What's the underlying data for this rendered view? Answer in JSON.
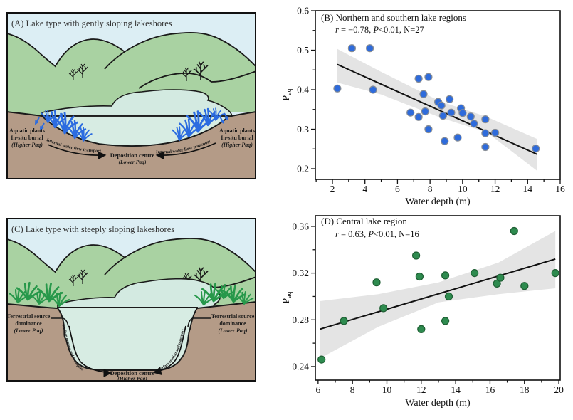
{
  "figure": {
    "panelA": {
      "title": "(A) Lake type with gently sloping lakeshores",
      "aquatic_left": [
        "Aquatic plants",
        "In-situ burial",
        "(Higher Paq)"
      ],
      "aquatic_right": [
        "Aquatic plants",
        "In-situ burial",
        "(Higher Paq)"
      ],
      "flow_arrow_left": "Internal water flow transport",
      "flow_arrow_right": "Internal water flow transport",
      "deposition": [
        "Deposition centre",
        "(Lower Paq)"
      ]
    },
    "panelC": {
      "title": "(C) Lake type with steeply sloping lakeshores",
      "terrestrial_left": [
        "Terrestrial source",
        "dominance",
        "(Lower Paq)"
      ],
      "terrestrial_right": [
        "Terrestrial source",
        "dominance",
        "(Lower Paq)"
      ],
      "erosion_arrow_left": "Surface erosion and transport",
      "erosion_arrow_right": "Surface erosion and transport",
      "deposition": [
        "Deposition centre",
        "(Higher Paq)"
      ]
    },
    "colors": {
      "sky": "#dceef4",
      "hills": "#a9d2a2",
      "lake": "#d7ece3",
      "ground": "#b49b87",
      "aquatic_plants": "#2c6ce0",
      "terrestrial_grass": "#27984a"
    }
  },
  "chart_data": [
    {
      "id": "B",
      "type": "scatter",
      "title": "(B) Northern and southern lake regions",
      "stats_text": "r = −0.78, P<0.01, N=27",
      "stats_parts": [
        {
          "text": "r",
          "italic": true
        },
        {
          "text": " = −0.78, ",
          "italic": false
        },
        {
          "text": "P",
          "italic": true
        },
        {
          "text": "<0.01, N=27",
          "italic": false
        }
      ],
      "xlabel": "Water depth (m)",
      "ylabel": {
        "main": "P",
        "sub": "aq"
      },
      "xlim": [
        0.95,
        16.0
      ],
      "ylim": [
        0.173,
        0.6
      ],
      "xticks": [
        2,
        4,
        6,
        8,
        10,
        12,
        14,
        16
      ],
      "yticks": [
        0.2,
        0.3,
        0.4,
        0.5,
        0.6
      ],
      "ytick_labels": [
        "0.2",
        "0.3",
        "0.4",
        "0.5",
        "0.6"
      ],
      "grid": false,
      "legend": "none",
      "point_color": "#2e6bdb",
      "point_edge": "#878d96",
      "band_color": "#e4e4e4",
      "trend": {
        "x": [
          2.3,
          14.6
        ],
        "y": [
          0.464,
          0.236
        ]
      },
      "band": {
        "upper": [
          [
            2.3,
            0.503
          ],
          [
            5.0,
            0.445
          ],
          [
            8.6,
            0.371
          ],
          [
            11.5,
            0.331
          ],
          [
            14.6,
            0.275
          ]
        ],
        "lower": [
          [
            2.3,
            0.418
          ],
          [
            5.0,
            0.388
          ],
          [
            8.6,
            0.33
          ],
          [
            11.5,
            0.292
          ],
          [
            14.6,
            0.194
          ]
        ]
      },
      "points": [
        [
          2.3,
          0.403
        ],
        [
          3.2,
          0.505
        ],
        [
          4.3,
          0.505
        ],
        [
          4.5,
          0.4
        ],
        [
          6.8,
          0.342
        ],
        [
          7.3,
          0.428
        ],
        [
          7.3,
          0.331
        ],
        [
          7.6,
          0.389
        ],
        [
          7.7,
          0.345
        ],
        [
          7.9,
          0.432
        ],
        [
          7.9,
          0.3
        ],
        [
          8.5,
          0.369
        ],
        [
          8.7,
          0.36
        ],
        [
          8.8,
          0.334
        ],
        [
          8.9,
          0.27
        ],
        [
          9.2,
          0.376
        ],
        [
          9.3,
          0.342
        ],
        [
          9.7,
          0.279
        ],
        [
          9.9,
          0.353
        ],
        [
          10.0,
          0.341
        ],
        [
          10.5,
          0.332
        ],
        [
          10.7,
          0.314
        ],
        [
          11.4,
          0.325
        ],
        [
          11.4,
          0.29
        ],
        [
          11.4,
          0.255
        ],
        [
          12.0,
          0.291
        ],
        [
          14.5,
          0.251
        ]
      ]
    },
    {
      "id": "D",
      "type": "scatter",
      "title": "(D) Central lake region",
      "stats_text": "r = 0.63, P<0.01, N=16",
      "stats_parts": [
        {
          "text": "r",
          "italic": true
        },
        {
          "text": " = 0.63, ",
          "italic": false
        },
        {
          "text": "P",
          "italic": true
        },
        {
          "text": "<0.01, N=16",
          "italic": false
        }
      ],
      "xlabel": "Water depth (m)",
      "ylabel": {
        "main": "P",
        "sub": "aq"
      },
      "xlim": [
        5.84,
        20.08
      ],
      "ylim": [
        0.2284,
        0.3691
      ],
      "xticks": [
        6,
        8,
        10,
        12,
        14,
        16,
        18,
        20
      ],
      "yticks": [
        0.24,
        0.28,
        0.32,
        0.36
      ],
      "ytick_labels": [
        "0.24",
        "0.28",
        "0.32",
        "0.36"
      ],
      "grid": false,
      "legend": "none",
      "point_color": "#2e8b4f",
      "point_edge": "#1e5f33",
      "band_color": "#e4e4e4",
      "trend": {
        "x": [
          6.1,
          19.8
        ],
        "y": [
          0.272,
          0.332
        ]
      },
      "band": {
        "upper": [
          [
            6.1,
            0.296
          ],
          [
            9.5,
            0.302
          ],
          [
            13.0,
            0.312
          ],
          [
            16.5,
            0.329
          ],
          [
            19.8,
            0.356
          ]
        ],
        "lower": [
          [
            6.1,
            0.247
          ],
          [
            9.5,
            0.274
          ],
          [
            13.0,
            0.295
          ],
          [
            16.5,
            0.302
          ],
          [
            19.8,
            0.307
          ]
        ]
      },
      "points": [
        [
          6.2,
          0.246
        ],
        [
          7.5,
          0.279
        ],
        [
          9.4,
          0.312
        ],
        [
          9.8,
          0.29
        ],
        [
          11.7,
          0.335
        ],
        [
          11.9,
          0.317
        ],
        [
          12.0,
          0.272
        ],
        [
          13.4,
          0.318
        ],
        [
          13.4,
          0.279
        ],
        [
          13.6,
          0.3
        ],
        [
          15.1,
          0.32
        ],
        [
          16.4,
          0.311
        ],
        [
          16.6,
          0.316
        ],
        [
          17.4,
          0.356
        ],
        [
          18.0,
          0.309
        ],
        [
          19.8,
          0.32
        ]
      ]
    }
  ]
}
